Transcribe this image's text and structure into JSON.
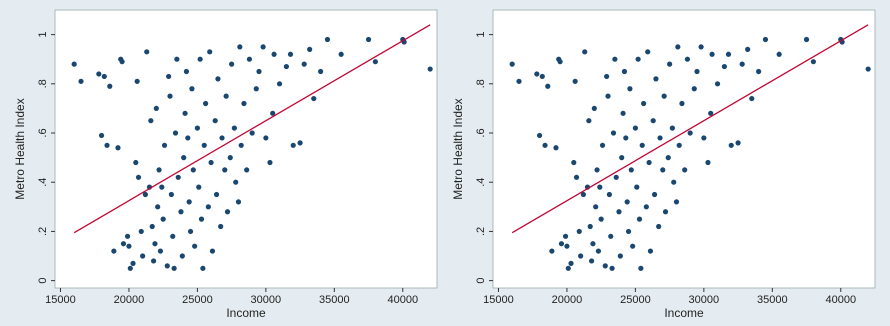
{
  "chart_data": [
    {
      "type": "scatter",
      "x_label": "Income",
      "y_label": "Metro Health Index",
      "xlim": [
        14600,
        42500
      ],
      "ylim": [
        -0.03,
        1.1
      ],
      "xticks": [
        15000,
        20000,
        25000,
        30000,
        35000,
        40000
      ],
      "yticks": [
        0,
        {
          "value": 0.2,
          "label": ".2"
        },
        {
          "value": 0.4,
          "label": ".4"
        },
        {
          "value": 0.6,
          "label": ".6"
        },
        {
          "value": 0.8,
          "label": ".8"
        },
        1
      ],
      "points": {
        "color": "#1a476f",
        "x": [
          16000,
          16500,
          17800,
          18200,
          18600,
          19400,
          19500,
          18000,
          18400,
          19200,
          18900,
          19600,
          19900,
          20000,
          20300,
          20100,
          20500,
          20700,
          20600,
          20900,
          21000,
          21200,
          21300,
          21500,
          21600,
          21700,
          21800,
          22000,
          22100,
          22200,
          22300,
          22500,
          22600,
          22800,
          22900,
          23000,
          23100,
          23200,
          23400,
          23500,
          23600,
          23800,
          23900,
          24000,
          24100,
          24200,
          24400,
          24500,
          24600,
          24700,
          24800,
          25000,
          25100,
          25200,
          25300,
          25500,
          25600,
          25800,
          25900,
          26000,
          26100,
          26300,
          26400,
          26500,
          26700,
          26800,
          27000,
          27100,
          27200,
          27400,
          27500,
          27700,
          27800,
          28000,
          28100,
          28200,
          28400,
          28600,
          28800,
          29000,
          29300,
          29500,
          29800,
          30000,
          30300,
          30500,
          30600,
          31000,
          31500,
          31800,
          32000,
          32500,
          32800,
          33200,
          33500,
          34000,
          34500,
          35500,
          37500,
          38000,
          40000,
          40100,
          42000,
          21900,
          23300,
          22400,
          24300,
          25400
        ],
        "y": [
          0.88,
          0.81,
          0.84,
          0.83,
          0.79,
          0.9,
          0.89,
          0.59,
          0.55,
          0.54,
          0.12,
          0.15,
          0.18,
          0.14,
          0.07,
          0.05,
          0.48,
          0.42,
          0.81,
          0.2,
          0.1,
          0.35,
          0.93,
          0.38,
          0.65,
          0.22,
          0.08,
          0.7,
          0.3,
          0.45,
          0.12,
          0.25,
          0.55,
          0.06,
          0.83,
          0.75,
          0.35,
          0.18,
          0.6,
          0.9,
          0.42,
          0.28,
          0.1,
          0.5,
          0.68,
          0.85,
          0.32,
          0.2,
          0.78,
          0.45,
          0.14,
          0.62,
          0.38,
          0.9,
          0.25,
          0.55,
          0.72,
          0.3,
          0.93,
          0.48,
          0.12,
          0.65,
          0.35,
          0.82,
          0.22,
          0.58,
          0.45,
          0.75,
          0.28,
          0.5,
          0.88,
          0.62,
          0.4,
          0.32,
          0.95,
          0.55,
          0.72,
          0.45,
          0.9,
          0.6,
          0.78,
          0.85,
          0.95,
          0.58,
          0.48,
          0.68,
          0.92,
          0.8,
          0.87,
          0.92,
          0.55,
          0.56,
          0.88,
          0.94,
          0.74,
          0.85,
          0.98,
          0.92,
          0.98,
          0.89,
          0.98,
          0.97,
          0.86,
          0.15,
          0.05,
          0.38,
          0.58,
          0.05
        ]
      },
      "fit_line": {
        "color": "#c10534",
        "x": [
          16000,
          42000
        ],
        "y": [
          0.195,
          1.04
        ]
      }
    },
    {
      "type": "scatter",
      "x_label": "Income",
      "y_label": "Metro Health Index",
      "xlim": [
        14600,
        42500
      ],
      "ylim": [
        -0.03,
        1.1
      ],
      "xticks": [
        15000,
        20000,
        25000,
        30000,
        35000,
        40000
      ],
      "yticks": [
        0,
        {
          "value": 0.2,
          "label": ".2"
        },
        {
          "value": 0.4,
          "label": ".4"
        },
        {
          "value": 0.6,
          "label": ".6"
        },
        {
          "value": 0.8,
          "label": ".8"
        },
        1
      ],
      "points": {
        "color": "#1a476f",
        "x": [
          16000,
          16500,
          17800,
          18200,
          18600,
          19400,
          19500,
          18000,
          18400,
          19200,
          18900,
          19600,
          19900,
          20000,
          20300,
          20100,
          20500,
          20700,
          20600,
          20900,
          21000,
          21200,
          21300,
          21500,
          21600,
          21700,
          21800,
          22000,
          22100,
          22200,
          22300,
          22500,
          22600,
          22800,
          22900,
          23000,
          23100,
          23200,
          23400,
          23500,
          23600,
          23800,
          23900,
          24000,
          24100,
          24200,
          24400,
          24500,
          24600,
          24700,
          24800,
          25000,
          25100,
          25200,
          25300,
          25500,
          25600,
          25800,
          25900,
          26000,
          26100,
          26300,
          26400,
          26500,
          26700,
          26800,
          27000,
          27100,
          27200,
          27400,
          27500,
          27700,
          27800,
          28000,
          28100,
          28200,
          28400,
          28600,
          28800,
          29000,
          29300,
          29500,
          29800,
          30000,
          30300,
          30500,
          30600,
          31000,
          31500,
          31800,
          32000,
          32500,
          32800,
          33200,
          33500,
          34000,
          34500,
          35500,
          37500,
          38000,
          40000,
          40100,
          42000,
          21900,
          23300,
          22400,
          24300,
          25400
        ],
        "y": [
          0.88,
          0.81,
          0.84,
          0.83,
          0.79,
          0.9,
          0.89,
          0.59,
          0.55,
          0.54,
          0.12,
          0.15,
          0.18,
          0.14,
          0.07,
          0.05,
          0.48,
          0.42,
          0.81,
          0.2,
          0.1,
          0.35,
          0.93,
          0.38,
          0.65,
          0.22,
          0.08,
          0.7,
          0.3,
          0.45,
          0.12,
          0.25,
          0.55,
          0.06,
          0.83,
          0.75,
          0.35,
          0.18,
          0.6,
          0.9,
          0.42,
          0.28,
          0.1,
          0.5,
          0.68,
          0.85,
          0.32,
          0.2,
          0.78,
          0.45,
          0.14,
          0.62,
          0.38,
          0.9,
          0.25,
          0.55,
          0.72,
          0.3,
          0.93,
          0.48,
          0.12,
          0.65,
          0.35,
          0.82,
          0.22,
          0.58,
          0.45,
          0.75,
          0.28,
          0.5,
          0.88,
          0.62,
          0.4,
          0.32,
          0.95,
          0.55,
          0.72,
          0.45,
          0.9,
          0.6,
          0.78,
          0.85,
          0.95,
          0.58,
          0.48,
          0.68,
          0.92,
          0.8,
          0.87,
          0.92,
          0.55,
          0.56,
          0.88,
          0.94,
          0.74,
          0.85,
          0.98,
          0.92,
          0.98,
          0.89,
          0.98,
          0.97,
          0.86,
          0.15,
          0.05,
          0.38,
          0.58,
          0.05
        ]
      },
      "fit_line": {
        "color": "#c10534",
        "x": [
          16000,
          42000
        ],
        "y": [
          0.195,
          1.04
        ]
      }
    }
  ]
}
